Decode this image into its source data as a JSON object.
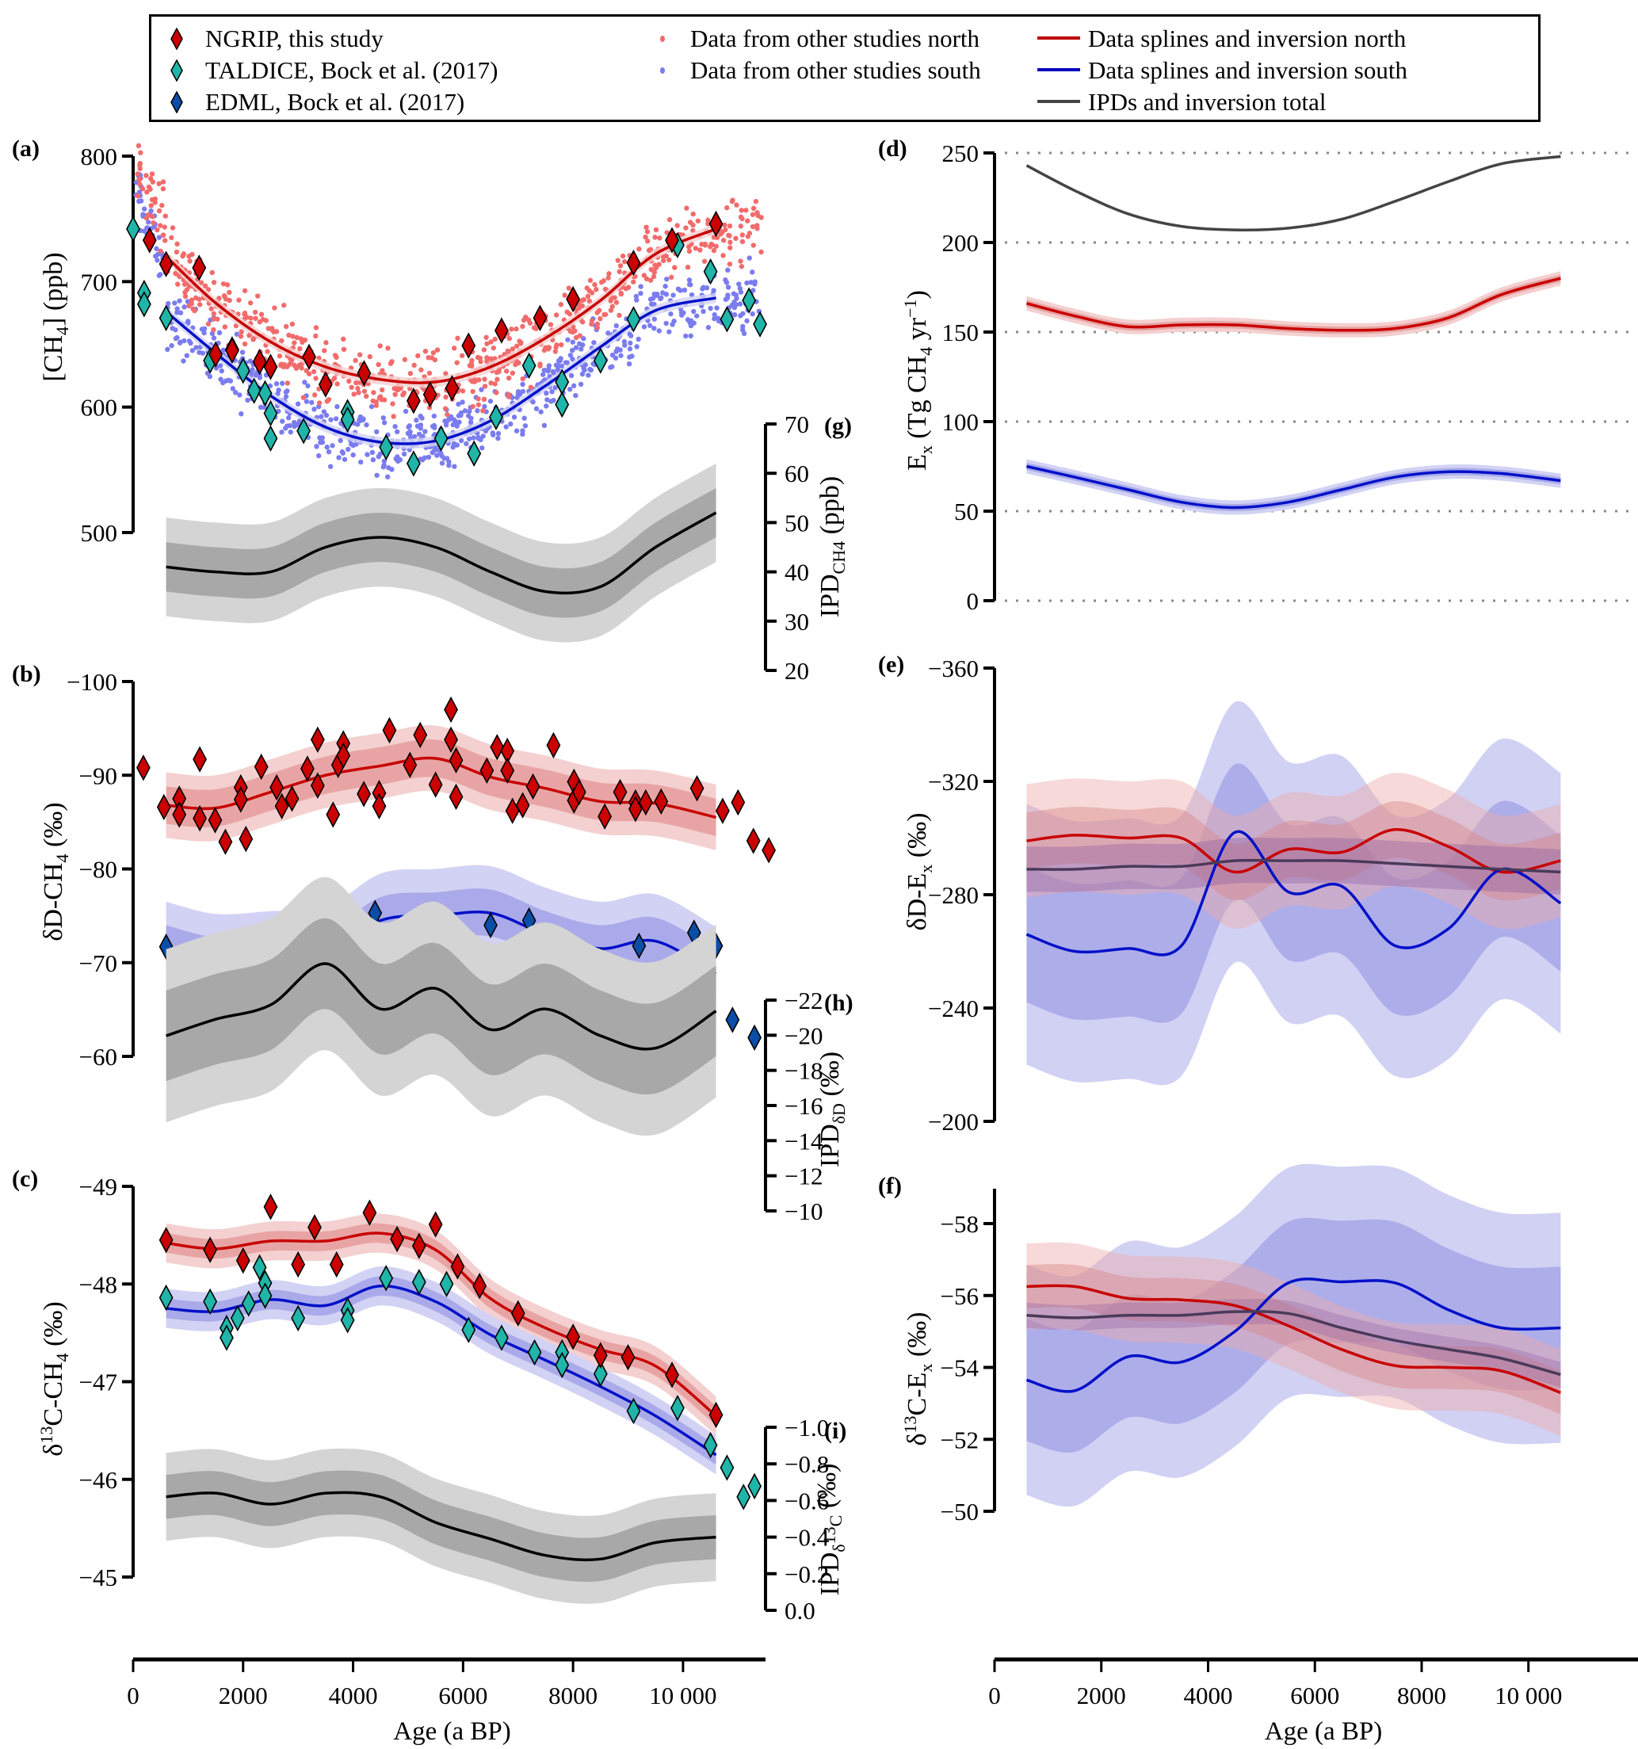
{
  "legend": {
    "items": [
      {
        "label": "NGRIP, this study",
        "symbol": "diamond",
        "color": "#cc0000"
      },
      {
        "label": "TALDICE, Bock et al. (2017)",
        "symbol": "diamond",
        "color": "#1fb5a8"
      },
      {
        "label": "EDML, Bock et al. (2017)",
        "symbol": "diamond",
        "color": "#0a4ea8"
      },
      {
        "label": "Data from other studies north",
        "symbol": "dot",
        "color": "#f26b6b"
      },
      {
        "label": "Data from other studies south",
        "symbol": "dot",
        "color": "#7b7cf0"
      },
      {
        "label": "Data splines and inversion north",
        "symbol": "line",
        "color": "#c00000"
      },
      {
        "label": "Data splines and inversion south",
        "symbol": "line",
        "color": "#0000c0"
      },
      {
        "label": "IPDs and inversion total",
        "symbol": "line",
        "color": "#444444"
      }
    ]
  },
  "colors": {
    "north_line": "#c80000",
    "north_band_inner": "#e8a4a4",
    "north_band_outer": "#f4d0d0",
    "south_line": "#0010c8",
    "south_band_inner": "#aaaaea",
    "south_band_outer": "#d2d2f4",
    "total_line": "#000000",
    "grey_inner": "#a8a8a8",
    "grey_outer": "#d4d4d4",
    "ngrip": "#cc0000",
    "taldice": "#1fb5a8",
    "edml": "#0a4ea8",
    "dots_north": "#f26b6b",
    "dots_south": "#7b7cf0",
    "inv_total": "#444444"
  },
  "x_axis": {
    "label": "Age (a BP)",
    "ticks": [
      0,
      2000,
      4000,
      6000,
      8000,
      10000
    ],
    "tick_labels": [
      "0",
      "2000",
      "4000",
      "6000",
      "8000",
      "10 000"
    ],
    "range": [
      0,
      11500
    ]
  },
  "chart_data": [
    {
      "panel": "(a)",
      "type": "scatter",
      "ylabel": "[CH4] (ppb)",
      "ylim": [
        500,
        800
      ],
      "yticks": [
        500,
        600,
        700,
        800
      ],
      "spline_north": {
        "x": [
          600,
          1500,
          2500,
          3500,
          4500,
          5500,
          6500,
          7500,
          8500,
          9500,
          10600
        ],
        "y": [
          720,
          683,
          652,
          632,
          622,
          620,
          632,
          655,
          685,
          722,
          742
        ]
      },
      "spline_south": {
        "x": [
          600,
          1500,
          2500,
          3500,
          4500,
          5500,
          6500,
          7500,
          8500,
          9500,
          10600
        ],
        "y": [
          676,
          643,
          609,
          584,
          572,
          573,
          589,
          617,
          648,
          677,
          687
        ]
      },
      "ngrip": [
        [
          300,
          733
        ],
        [
          600,
          714
        ],
        [
          1200,
          711
        ],
        [
          1500,
          642
        ],
        [
          1800,
          645
        ],
        [
          2300,
          636
        ],
        [
          2500,
          632
        ],
        [
          3200,
          640
        ],
        [
          3500,
          618
        ],
        [
          4200,
          627
        ],
        [
          5100,
          605
        ],
        [
          5400,
          610
        ],
        [
          5800,
          615
        ],
        [
          6100,
          649
        ],
        [
          6700,
          661
        ],
        [
          7400,
          671
        ],
        [
          8000,
          686
        ],
        [
          9100,
          715
        ],
        [
          9800,
          733
        ],
        [
          10600,
          746
        ]
      ],
      "taldice": [
        [
          0,
          742
        ],
        [
          200,
          691
        ],
        [
          200,
          682
        ],
        [
          600,
          671
        ],
        [
          1400,
          637
        ],
        [
          1800,
          646
        ],
        [
          2000,
          629
        ],
        [
          2200,
          613
        ],
        [
          2400,
          611
        ],
        [
          2500,
          595
        ],
        [
          2500,
          575
        ],
        [
          3100,
          581
        ],
        [
          3900,
          596
        ],
        [
          3900,
          590
        ],
        [
          4600,
          568
        ],
        [
          5100,
          555
        ],
        [
          5600,
          575
        ],
        [
          6200,
          563
        ],
        [
          6600,
          592
        ],
        [
          7200,
          633
        ],
        [
          7800,
          620
        ],
        [
          7800,
          602
        ],
        [
          8500,
          637
        ],
        [
          9100,
          670
        ],
        [
          9900,
          729
        ],
        [
          10500,
          708
        ],
        [
          10800,
          670
        ],
        [
          11200,
          685
        ],
        [
          11400,
          666
        ]
      ]
    },
    {
      "panel": "(g)",
      "type": "area",
      "ylabel": "IPD_CH4 (ppb)",
      "ylim": [
        20,
        70
      ],
      "yticks": [
        20,
        30,
        40,
        50,
        60,
        70
      ],
      "x": [
        600,
        1500,
        2500,
        3500,
        4500,
        5500,
        6500,
        7500,
        8500,
        9500,
        10600
      ],
      "mean": [
        41,
        40,
        40,
        45,
        47,
        45,
        40,
        36,
        37,
        45,
        52
      ],
      "sigma1": 5,
      "sigma2": 10
    },
    {
      "panel": "(b)",
      "type": "scatter",
      "ylabel": "δD-CH4 (‰)",
      "ylim": [
        -100,
        -60
      ],
      "yticks": [
        -100,
        -90,
        -80,
        -70,
        -60
      ],
      "inverted": true,
      "spline_north": {
        "x": [
          600,
          1500,
          2500,
          3500,
          4500,
          5500,
          6500,
          7500,
          8500,
          9500,
          10600
        ],
        "y": [
          -86.8,
          -86.5,
          -88.2,
          -90.0,
          -91.0,
          -91.8,
          -89.8,
          -88.6,
          -87.2,
          -87.0,
          -85.5
        ]
      },
      "spline_south": {
        "x": [
          600,
          1500,
          2500,
          3500,
          4500,
          5500,
          6500,
          7500,
          8500,
          9500,
          10600
        ],
        "y": [
          -71.5,
          -70.2,
          -70.5,
          -70.8,
          -74.5,
          -75.0,
          -75.3,
          -73.0,
          -71.5,
          -72.3,
          -68.8
        ]
      },
      "ngrip": [
        [
          200,
          -90.8
        ],
        [
          600,
          -86.6
        ],
        [
          900,
          -87.5
        ],
        [
          900,
          -85.8
        ],
        [
          1300,
          -91.7
        ],
        [
          1300,
          -85.4
        ],
        [
          1600,
          -85.2
        ],
        [
          1800,
          -82.9
        ],
        [
          2100,
          -88.7
        ],
        [
          2100,
          -87.4
        ],
        [
          2200,
          -83.2
        ],
        [
          2500,
          -90.9
        ],
        [
          2800,
          -88.7
        ],
        [
          2900,
          -86.7
        ],
        [
          3100,
          -87.5
        ],
        [
          3400,
          -90.7
        ],
        [
          3600,
          -93.8
        ],
        [
          3600,
          -88.9
        ],
        [
          3900,
          -85.8
        ],
        [
          4000,
          -91.1
        ],
        [
          4100,
          -93.4
        ],
        [
          4100,
          -92.1
        ],
        [
          4500,
          -88.0
        ],
        [
          4800,
          -88.1
        ],
        [
          4800,
          -86.7
        ],
        [
          5000,
          -94.8
        ],
        [
          5400,
          -91.1
        ],
        [
          5600,
          -94.3
        ],
        [
          5900,
          -89.0
        ],
        [
          6200,
          -97.0
        ],
        [
          6200,
          -93.8
        ],
        [
          6300,
          -91.6
        ],
        [
          6300,
          -87.7
        ],
        [
          6900,
          -90.5
        ],
        [
          7100,
          -93.0
        ],
        [
          7300,
          -92.6
        ],
        [
          7300,
          -90.5
        ],
        [
          7400,
          -86.2
        ],
        [
          7600,
          -86.8
        ],
        [
          7800,
          -88.8
        ],
        [
          8200,
          -93.2
        ],
        [
          8600,
          -89.3
        ],
        [
          8600,
          -87.3
        ],
        [
          8700,
          -88.2
        ],
        [
          9200,
          -85.6
        ],
        [
          9500,
          -88.2
        ],
        [
          9800,
          -87.1
        ],
        [
          9800,
          -86.4
        ],
        [
          10000,
          -87.1
        ],
        [
          10300,
          -87.2
        ],
        [
          11000,
          -88.6
        ],
        [
          11500,
          -86.2
        ],
        [
          11800,
          -87.1
        ],
        [
          12100,
          -83.0
        ],
        [
          12400,
          -82.0
        ]
      ],
      "edml": [
        [
          600,
          -71.7
        ],
        [
          1400,
          -71.3
        ],
        [
          1700,
          -68.0
        ],
        [
          2100,
          -70.6
        ],
        [
          2700,
          -72.0
        ],
        [
          3300,
          -68.0
        ],
        [
          3900,
          -73.2
        ],
        [
          4400,
          -75.3
        ],
        [
          5300,
          -73.8
        ],
        [
          6500,
          -74.0
        ],
        [
          7200,
          -74.5
        ],
        [
          8500,
          -70.2
        ],
        [
          9200,
          -71.8
        ],
        [
          10200,
          -73.2
        ],
        [
          10600,
          -71.8
        ],
        [
          10900,
          -63.9
        ],
        [
          11300,
          -62.0
        ]
      ]
    },
    {
      "panel": "(h)",
      "type": "area",
      "ylabel": "IPD_δD (‰)",
      "ylim": [
        -10,
        -22
      ],
      "yticks": [
        -22,
        -20,
        -18,
        -16,
        -14,
        -12,
        -10
      ],
      "x": [
        600,
        1500,
        2500,
        3500,
        4500,
        5500,
        6500,
        7500,
        8500,
        9500,
        10600
      ],
      "mean": [
        -15.5,
        -16.3,
        -17.0,
        -19.0,
        -16.8,
        -17.8,
        -15.8,
        -16.8,
        -15.5,
        -14.9,
        -16.7
      ],
      "sigma1": 2.2,
      "sigma2": 4.2
    },
    {
      "panel": "(c)",
      "type": "scatter",
      "ylabel": "δ13C-CH4 (‰)",
      "ylim": [
        -49,
        -45
      ],
      "yticks": [
        -49,
        -48,
        -47,
        -46,
        -45
      ],
      "inverted": true,
      "spline_north": {
        "x": [
          600,
          1500,
          2500,
          3500,
          4500,
          5500,
          6500,
          7500,
          8500,
          9500,
          10600
        ],
        "y": [
          -48.42,
          -48.36,
          -48.44,
          -48.44,
          -48.52,
          -48.35,
          -47.85,
          -47.55,
          -47.33,
          -47.16,
          -46.65
        ]
      },
      "spline_south": {
        "x": [
          600,
          1500,
          2500,
          3500,
          4500,
          5500,
          6500,
          7500,
          8500,
          9500,
          10600
        ],
        "y": [
          -47.75,
          -47.72,
          -47.84,
          -47.78,
          -47.98,
          -47.82,
          -47.48,
          -47.22,
          -46.95,
          -46.65,
          -46.25
        ]
      },
      "ngrip": [
        [
          600,
          -48.45
        ],
        [
          1400,
          -48.35
        ],
        [
          2000,
          -48.24
        ],
        [
          2500,
          -48.79
        ],
        [
          3000,
          -48.2
        ],
        [
          3300,
          -48.58
        ],
        [
          3700,
          -48.2
        ],
        [
          4300,
          -48.73
        ],
        [
          4800,
          -48.46
        ],
        [
          5200,
          -48.39
        ],
        [
          5500,
          -48.61
        ],
        [
          5900,
          -48.18
        ],
        [
          6300,
          -47.98
        ],
        [
          7000,
          -47.7
        ],
        [
          8000,
          -47.46
        ],
        [
          8500,
          -47.27
        ],
        [
          9000,
          -47.25
        ],
        [
          9800,
          -47.07
        ],
        [
          10600,
          -46.66
        ]
      ],
      "taldice": [
        [
          600,
          -47.86
        ],
        [
          1400,
          -47.82
        ],
        [
          1700,
          -47.55
        ],
        [
          1700,
          -47.45
        ],
        [
          1900,
          -47.65
        ],
        [
          2100,
          -47.8
        ],
        [
          2300,
          -48.17
        ],
        [
          2400,
          -48.01
        ],
        [
          2400,
          -47.88
        ],
        [
          3000,
          -47.65
        ],
        [
          3900,
          -47.73
        ],
        [
          3900,
          -47.63
        ],
        [
          4600,
          -48.06
        ],
        [
          5200,
          -48.02
        ],
        [
          5700,
          -48.0
        ],
        [
          6100,
          -47.53
        ],
        [
          6700,
          -47.45
        ],
        [
          7300,
          -47.3
        ],
        [
          7800,
          -47.3
        ],
        [
          7800,
          -47.17
        ],
        [
          8500,
          -47.08
        ],
        [
          9100,
          -46.7
        ],
        [
          9900,
          -46.73
        ],
        [
          10500,
          -46.35
        ],
        [
          10800,
          -46.12
        ],
        [
          11100,
          -45.82
        ],
        [
          11300,
          -45.93
        ]
      ]
    },
    {
      "panel": "(i)",
      "type": "area",
      "ylabel": "IPD_δ13C (‰)",
      "ylim": [
        0.0,
        -1.0
      ],
      "yticks": [
        -1.0,
        -0.8,
        -0.6,
        -0.4,
        -0.2,
        0.0
      ],
      "x": [
        600,
        1500,
        2500,
        3500,
        4500,
        5500,
        6500,
        7500,
        8500,
        9500,
        10600
      ],
      "mean": [
        -0.62,
        -0.64,
        -0.58,
        -0.64,
        -0.62,
        -0.48,
        -0.39,
        -0.3,
        -0.28,
        -0.37,
        -0.4
      ],
      "sigma1": 0.12,
      "sigma2": 0.24
    },
    {
      "panel": "(d)",
      "type": "line",
      "ylabel": "Ex (Tg CH4 yr−1)",
      "ylim": [
        0,
        250
      ],
      "yticks": [
        0,
        50,
        100,
        150,
        200,
        250
      ],
      "grid": "dotted",
      "x": [
        600,
        1500,
        2500,
        3500,
        4500,
        5500,
        6500,
        7500,
        8500,
        9500,
        10600
      ],
      "north": [
        166,
        159,
        153,
        154,
        154,
        152,
        151,
        152,
        158,
        171,
        180
      ],
      "south": [
        75,
        69,
        62,
        55,
        52,
        55,
        62,
        69,
        72,
        71,
        67
      ],
      "total": [
        243,
        229,
        216,
        209,
        207,
        208,
        213,
        223,
        234,
        244,
        248
      ],
      "band_north": 4,
      "band_south": 4
    },
    {
      "panel": "(e)",
      "type": "area",
      "ylabel": "δD-Ex (‰)",
      "ylim": [
        -360,
        -200
      ],
      "yticks": [
        -360,
        -320,
        -280,
        -240,
        -200
      ],
      "inverted": true,
      "x": [
        600,
        1500,
        2500,
        3500,
        4500,
        5500,
        6500,
        7500,
        8500,
        9500,
        10600
      ],
      "north": [
        -299,
        -301,
        -300,
        -300,
        -288,
        -296,
        -295,
        -303,
        -297,
        -288,
        -292
      ],
      "south": [
        -266,
        -260,
        -261,
        -262,
        -302,
        -281,
        -283,
        -262,
        -268,
        -289,
        -277
      ],
      "total": [
        -289,
        -289,
        -290,
        -290,
        -292,
        -292,
        -292,
        -291,
        -290,
        -289,
        -288
      ],
      "sigma1_north": 10,
      "sigma2_north": 20,
      "sigma1_south": 24,
      "sigma2_south": 46
    },
    {
      "panel": "(f)",
      "type": "area",
      "ylabel": "δ13C-Ex (‰)",
      "ylim": [
        -50,
        -59
      ],
      "yticks": [
        -58,
        -56,
        -54,
        -52,
        -50
      ],
      "inverted": true,
      "x": [
        600,
        1500,
        2500,
        3500,
        4500,
        5500,
        6500,
        7500,
        8500,
        9500,
        10600
      ],
      "north": [
        -56.25,
        -56.25,
        -55.92,
        -55.88,
        -55.72,
        -55.16,
        -54.5,
        -54.05,
        -54.0,
        -53.9,
        -53.3
      ],
      "south": [
        -53.65,
        -53.35,
        -54.3,
        -54.15,
        -55.0,
        -56.35,
        -56.38,
        -56.35,
        -55.6,
        -55.1,
        -55.1
      ],
      "total": [
        -55.45,
        -55.38,
        -55.45,
        -55.45,
        -55.55,
        -55.5,
        -55.1,
        -54.75,
        -54.5,
        -54.25,
        -53.8
      ],
      "sigma1_north": 0.6,
      "sigma2_north": 1.2,
      "sigma1_south": 1.7,
      "sigma2_south": 3.2
    }
  ]
}
